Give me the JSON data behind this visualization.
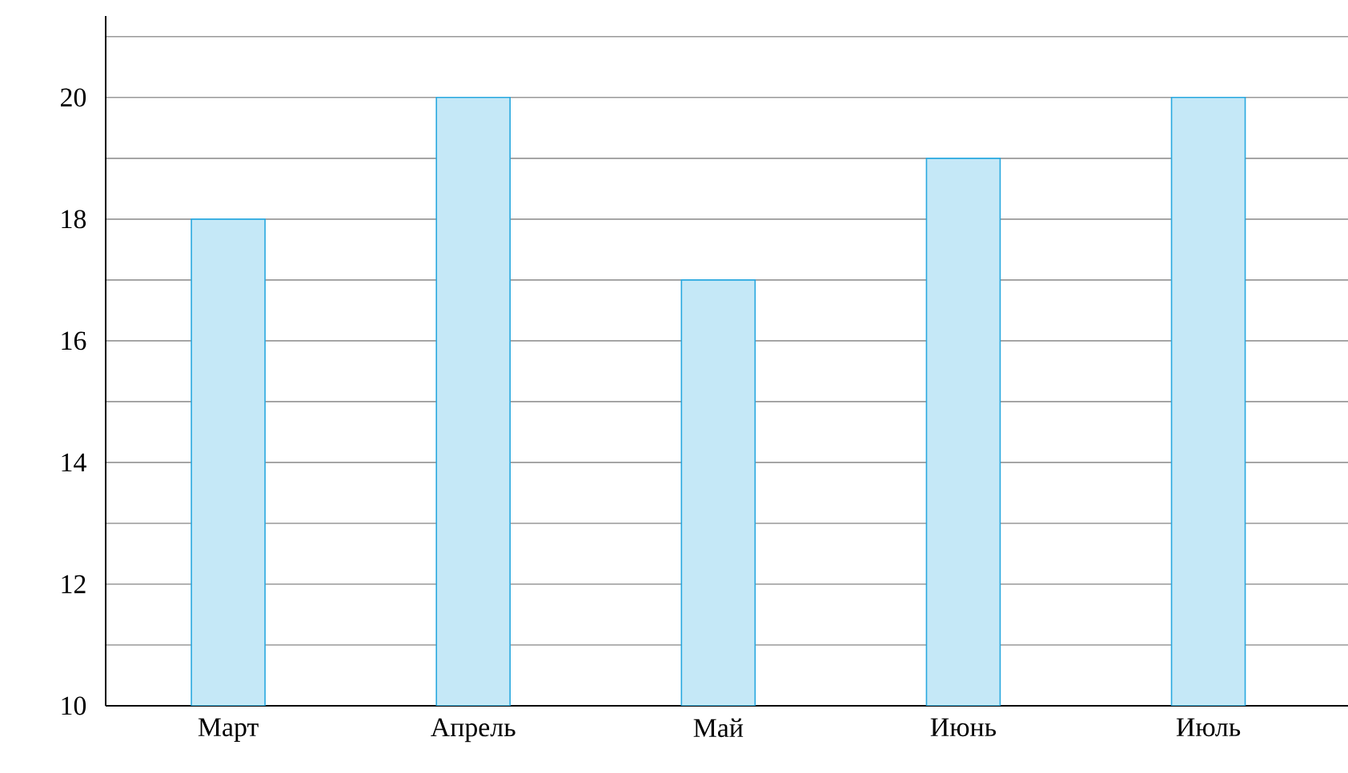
{
  "chart_data": {
    "type": "bar",
    "categories": [
      "Март",
      "Апрель",
      "Май",
      "Июнь",
      "Июль"
    ],
    "values": [
      18,
      20,
      17,
      19,
      20
    ],
    "color": "#c5e8f7",
    "ylim": [
      10,
      21.34
    ],
    "yticks": [
      10,
      {
        "value": 11,
        "label": null
      },
      12,
      {
        "value": 13,
        "label": null
      },
      14,
      {
        "value": 15,
        "label": null
      },
      16,
      {
        "value": 17,
        "label": null
      },
      18,
      {
        "value": 19,
        "label": null
      },
      20,
      {
        "value": 21,
        "label": null
      }
    ],
    "grid": "y"
  }
}
